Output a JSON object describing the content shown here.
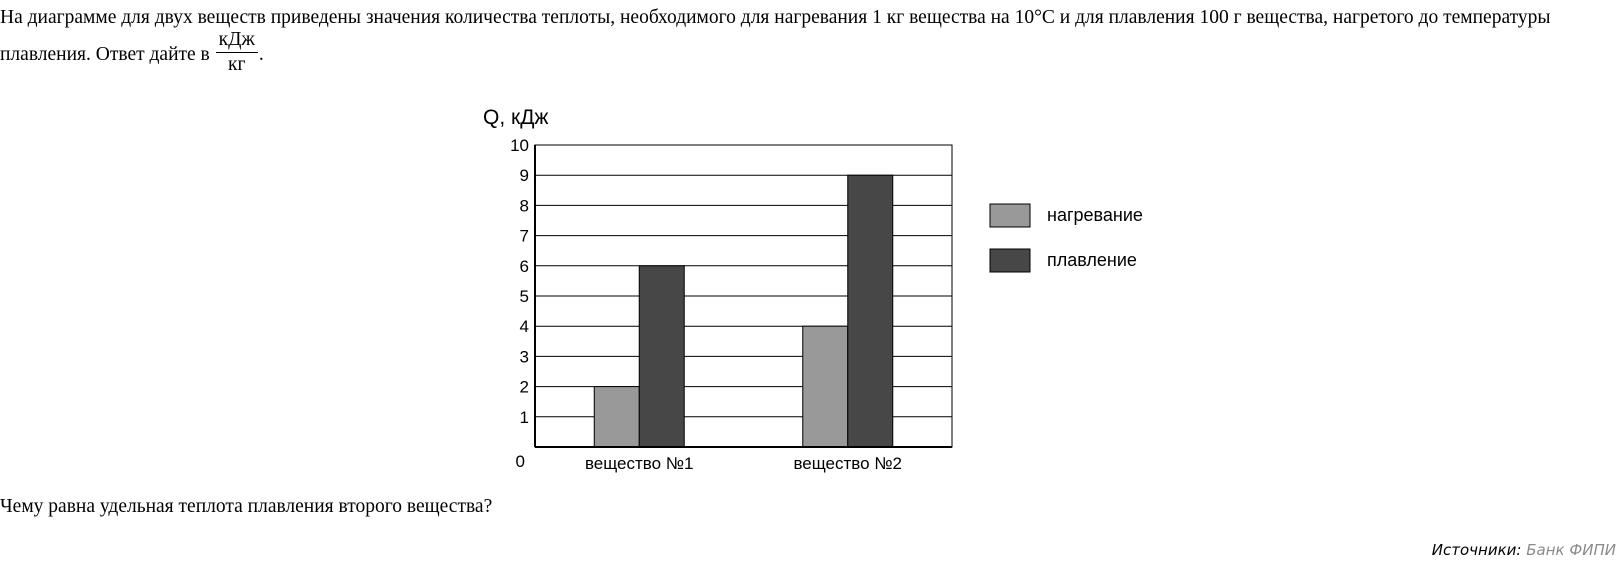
{
  "problem": {
    "text_before": "На диаграмме для двух веществ приведены значения количества теплоты, необходимого для нагревания ",
    "mass": "1",
    "text_mid1": " кг вещества на ",
    "temp": "10°C",
    "text_mid2": " и для плавления ",
    "melt_mass": "100",
    "text_mid3": " г вещества, нагретого до температуры плавления. Ответ дайте в ",
    "unit_num": "кДж",
    "unit_den": "кг",
    "text_end": "."
  },
  "question": "Чему равна удельная теплота плавления второго вещества?",
  "source": {
    "label": "Источники:",
    "link": "Банк ФИПИ"
  },
  "colors": {
    "heating": "#999999",
    "melting": "#474747",
    "source_link": "#8a8a8a"
  },
  "chart_data": {
    "type": "bar",
    "ylabel": "Q, кДж",
    "ylim": [
      0,
      10
    ],
    "yticks": [
      0,
      1,
      2,
      3,
      4,
      5,
      6,
      7,
      8,
      9,
      10
    ],
    "categories": [
      "вещество №1",
      "вещество №2"
    ],
    "series": [
      {
        "name": "нагревание",
        "values": [
          2,
          4
        ],
        "color": "#999999"
      },
      {
        "name": "плавление",
        "values": [
          6,
          9
        ],
        "color": "#474747"
      }
    ],
    "grid": true,
    "legend": "right"
  }
}
